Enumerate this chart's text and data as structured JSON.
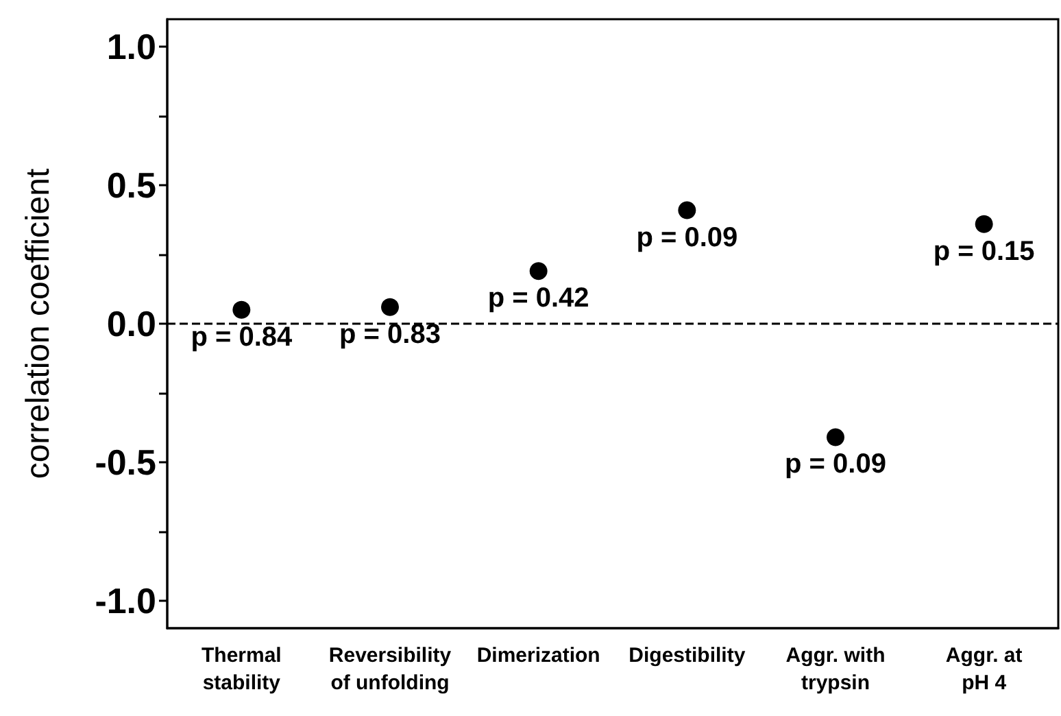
{
  "chart_data": {
    "type": "scatter",
    "ylabel": "correlation coefficient",
    "categories": [
      "Thermal\nstability",
      "Reversibility\nof unfolding",
      "Dimerization",
      "Digestibility",
      "Aggr. with\ntrypsin",
      "Aggr. at\npH 4"
    ],
    "values": [
      0.05,
      0.06,
      0.19,
      0.41,
      -0.41,
      0.36
    ],
    "color": "#000000",
    "marker": "circle",
    "grid": false,
    "ylim": [
      -1.1,
      1.1
    ],
    "yticks": [
      {
        "value": -1.0,
        "label": "-1.0"
      },
      {
        "value": -0.75,
        "label": null
      },
      {
        "value": -0.5,
        "label": "-0.5"
      },
      {
        "value": -0.25,
        "label": null
      },
      {
        "value": 0,
        "label": "0.0"
      },
      {
        "value": 0.25,
        "label": null
      },
      {
        "value": 0.5,
        "label": "0.5"
      },
      {
        "value": 0.75,
        "label": null
      },
      {
        "value": 1.0,
        "label": "1.0"
      }
    ],
    "ref_lines": [
      {
        "axis": "y",
        "value": 0,
        "line_style": "dashed",
        "color": "#000000"
      }
    ],
    "annotations": [
      {
        "text": "p = 0.84",
        "x": "Thermal\nstability",
        "y": 0.05
      },
      {
        "text": "p = 0.83",
        "x": "Reversibility\nof unfolding",
        "y": 0.06
      },
      {
        "text": "p = 0.42",
        "x": "Dimerization",
        "y": 0.19
      },
      {
        "text": "p = 0.09",
        "x": "Digestibility",
        "y": 0.41
      },
      {
        "text": "p = 0.09",
        "x": "Aggr. with\ntrypsin",
        "y": -0.41
      },
      {
        "text": "p = 0.15",
        "x": "Aggr. at\npH 4",
        "y": 0.36
      }
    ]
  }
}
